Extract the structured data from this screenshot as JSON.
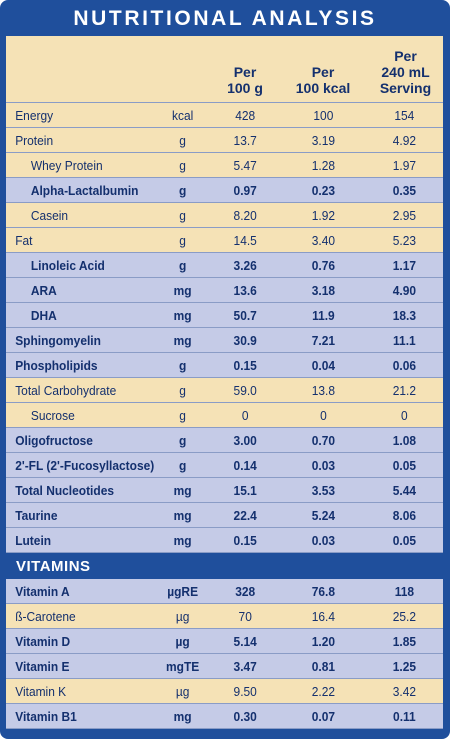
{
  "title": "NUTRITIONAL ANALYSIS",
  "header": {
    "col1": "Per\n100 g",
    "col2": "Per\n100 kcal",
    "col3": "Per\n240 mL\nServing"
  },
  "colors": {
    "frame": "#1f4f9c",
    "tan": "#f5e2b6",
    "blue": "#c5cbe7",
    "text": "#14306e"
  },
  "nutrients": [
    {
      "name": "Energy",
      "unit": "kcal",
      "v1": "428",
      "v2": "100",
      "v3": "154",
      "bold": false,
      "indent": false,
      "shade": "tan"
    },
    {
      "name": "Protein",
      "unit": "g",
      "v1": "13.7",
      "v2": "3.19",
      "v3": "4.92",
      "bold": false,
      "indent": false,
      "shade": "tan"
    },
    {
      "name": "Whey Protein",
      "unit": "g",
      "v1": "5.47",
      "v2": "1.28",
      "v3": "1.97",
      "bold": false,
      "indent": true,
      "shade": "tan"
    },
    {
      "name": "Alpha-Lactalbumin",
      "unit": "g",
      "v1": "0.97",
      "v2": "0.23",
      "v3": "0.35",
      "bold": true,
      "indent": true,
      "shade": "blue"
    },
    {
      "name": "Casein",
      "unit": "g",
      "v1": "8.20",
      "v2": "1.92",
      "v3": "2.95",
      "bold": false,
      "indent": true,
      "shade": "tan"
    },
    {
      "name": "Fat",
      "unit": "g",
      "v1": "14.5",
      "v2": "3.40",
      "v3": "5.23",
      "bold": false,
      "indent": false,
      "shade": "tan"
    },
    {
      "name": "Linoleic Acid",
      "unit": "g",
      "v1": "3.26",
      "v2": "0.76",
      "v3": "1.17",
      "bold": true,
      "indent": true,
      "shade": "blue"
    },
    {
      "name": "ARA",
      "unit": "mg",
      "v1": "13.6",
      "v2": "3.18",
      "v3": "4.90",
      "bold": true,
      "indent": true,
      "shade": "blue"
    },
    {
      "name": "DHA",
      "unit": "mg",
      "v1": "50.7",
      "v2": "11.9",
      "v3": "18.3",
      "bold": true,
      "indent": true,
      "shade": "blue"
    },
    {
      "name": "Sphingomyelin",
      "unit": "mg",
      "v1": "30.9",
      "v2": "7.21",
      "v3": "11.1",
      "bold": true,
      "indent": false,
      "shade": "blue"
    },
    {
      "name": "Phospholipids",
      "unit": "g",
      "v1": "0.15",
      "v2": "0.04",
      "v3": "0.06",
      "bold": true,
      "indent": false,
      "shade": "blue"
    },
    {
      "name": "Total Carbohydrate",
      "unit": "g",
      "v1": "59.0",
      "v2": "13.8",
      "v3": "21.2",
      "bold": false,
      "indent": false,
      "shade": "tan"
    },
    {
      "name": "Sucrose",
      "unit": "g",
      "v1": "0",
      "v2": "0",
      "v3": "0",
      "bold": false,
      "indent": true,
      "shade": "tan"
    },
    {
      "name": "Oligofructose",
      "unit": "g",
      "v1": "3.00",
      "v2": "0.70",
      "v3": "1.08",
      "bold": true,
      "indent": false,
      "shade": "blue"
    },
    {
      "name": "2'-FL (2'-Fucosyllactose)",
      "unit": "g",
      "v1": "0.14",
      "v2": "0.03",
      "v3": "0.05",
      "bold": true,
      "indent": false,
      "shade": "blue"
    },
    {
      "name": "Total Nucleotides",
      "unit": "mg",
      "v1": "15.1",
      "v2": "3.53",
      "v3": "5.44",
      "bold": true,
      "indent": false,
      "shade": "blue"
    },
    {
      "name": "Taurine",
      "unit": "mg",
      "v1": "22.4",
      "v2": "5.24",
      "v3": "8.06",
      "bold": true,
      "indent": false,
      "shade": "blue"
    },
    {
      "name": "Lutein",
      "unit": "mg",
      "v1": "0.15",
      "v2": "0.03",
      "v3": "0.05",
      "bold": true,
      "indent": false,
      "shade": "blue"
    }
  ],
  "vitamins_title": "VITAMINS",
  "vitamins": [
    {
      "name": "Vitamin A",
      "unit": "µgRE",
      "v1": "328",
      "v2": "76.8",
      "v3": "118",
      "bold": true,
      "indent": false,
      "shade": "blue"
    },
    {
      "name": "ß-Carotene",
      "unit": "µg",
      "v1": "70",
      "v2": "16.4",
      "v3": "25.2",
      "bold": false,
      "indent": false,
      "shade": "tan"
    },
    {
      "name": "Vitamin D",
      "unit": "µg",
      "v1": "5.14",
      "v2": "1.20",
      "v3": "1.85",
      "bold": true,
      "indent": false,
      "shade": "blue"
    },
    {
      "name": "Vitamin E",
      "unit": "mgTE",
      "v1": "3.47",
      "v2": "0.81",
      "v3": "1.25",
      "bold": true,
      "indent": false,
      "shade": "blue"
    },
    {
      "name": "Vitamin K",
      "unit": "µg",
      "v1": "9.50",
      "v2": "2.22",
      "v3": "3.42",
      "bold": false,
      "indent": false,
      "shade": "tan"
    },
    {
      "name": "Vitamin B1",
      "unit": "mg",
      "v1": "0.30",
      "v2": "0.07",
      "v3": "0.11",
      "bold": true,
      "indent": false,
      "shade": "blue"
    }
  ]
}
